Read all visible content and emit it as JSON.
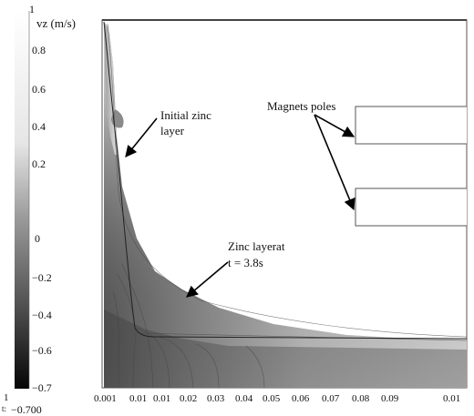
{
  "title": "vz (m/s)",
  "colorbar": {
    "top_marker": "1",
    "ticks": [
      "0.8",
      "0.6",
      "0.4",
      "0.2",
      "0",
      "−0.2",
      "−0.4",
      "−0.6",
      "−0.7"
    ],
    "bottom_marker": "1",
    "bottom_value": "−0.700",
    "bottom_prefix": "t:"
  },
  "x_axis": {
    "ticks": [
      "0.001",
      "0.01",
      "0.01",
      "0.02",
      "0.03",
      "0.04",
      "0.05",
      "0.06",
      "0.07",
      "0.08",
      "0.09",
      "0.01"
    ]
  },
  "annotations": {
    "initial_layer": [
      "Initial zinc",
      "layer"
    ],
    "magnets": "Magnets poles",
    "zinc_layer": [
      "Zinc layerat",
      "t = 3.8s"
    ]
  },
  "colors": {
    "frame": "#555555",
    "dark": "#1a1a1a",
    "mid": "#8c8c8c",
    "light": "#ffffff"
  }
}
